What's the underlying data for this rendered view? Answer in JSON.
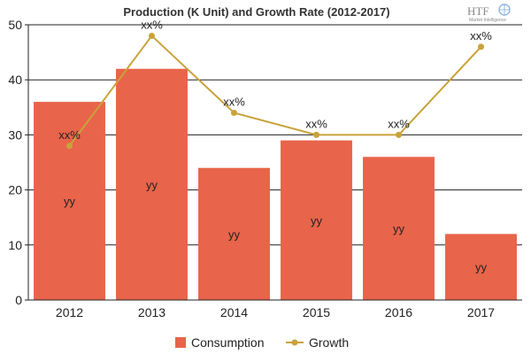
{
  "chart_data": {
    "type": "bar",
    "title": "Production (K Unit) and Growth Rate (2012-2017)",
    "categories": [
      "2012",
      "2013",
      "2014",
      "2015",
      "2016",
      "2017"
    ],
    "ylim": [
      0,
      50
    ],
    "yticks": [
      0,
      10,
      20,
      30,
      40,
      50
    ],
    "grid": true,
    "legend_position": "bottom",
    "series": [
      {
        "name": "Consumption",
        "type": "bar",
        "color": "#e8644a",
        "values": [
          36,
          42,
          24,
          29,
          26,
          12
        ],
        "labels": [
          "yy",
          "yy",
          "yy",
          "yy",
          "yy",
          "yy"
        ]
      },
      {
        "name": "Growth",
        "type": "line",
        "color": "#c9a23a",
        "values": [
          28,
          48,
          34,
          30,
          30,
          46
        ],
        "labels": [
          "xx%",
          "xx%",
          "xx%",
          "xx%",
          "xx%",
          "xx%"
        ]
      }
    ]
  },
  "logo": {
    "text": "HTF",
    "subtext": "Market Intelligence"
  }
}
